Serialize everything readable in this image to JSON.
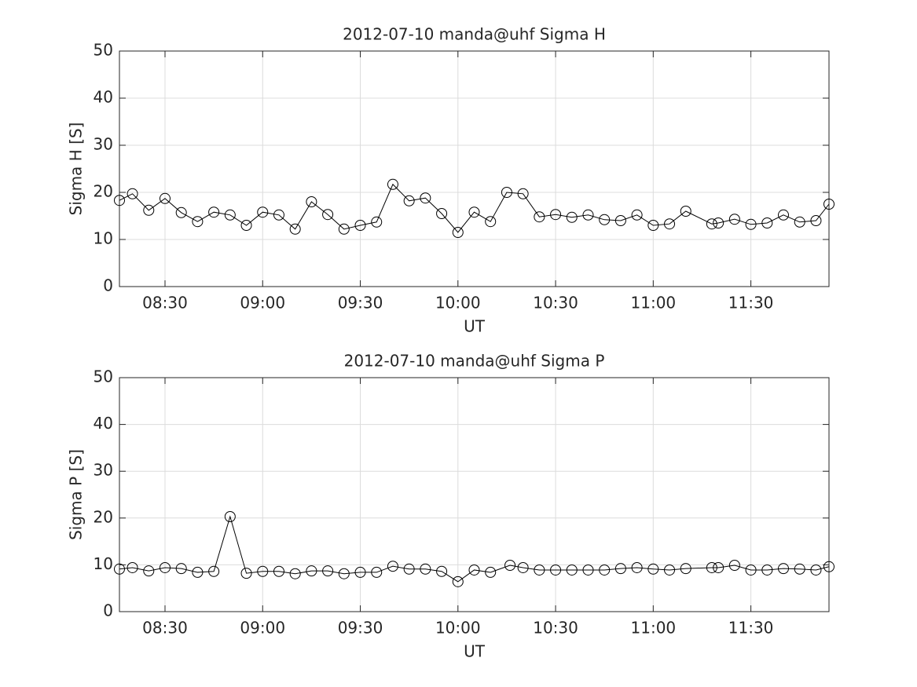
{
  "chart_data": [
    {
      "type": "line",
      "title": "2012-07-10  manda@uhf Sigma H",
      "xlabel": "UT",
      "ylabel": "Sigma H [S]",
      "x": [
        496,
        500,
        505,
        510,
        515,
        520,
        525,
        530,
        535,
        540,
        545,
        550,
        555,
        560,
        565,
        570,
        575,
        580,
        585,
        590,
        595,
        600,
        605,
        610,
        615,
        620,
        625,
        630,
        635,
        640,
        645,
        650,
        655,
        660,
        665,
        670,
        678,
        680,
        685,
        690,
        695,
        700,
        705,
        710,
        714
      ],
      "values": [
        18.3,
        19.7,
        16.2,
        18.7,
        15.7,
        13.8,
        15.8,
        15.2,
        13.0,
        15.8,
        15.2,
        12.2,
        18.0,
        15.3,
        12.2,
        13.0,
        13.7,
        21.7,
        18.2,
        18.8,
        15.5,
        11.5,
        15.8,
        13.8,
        20.0,
        19.7,
        14.8,
        15.3,
        14.7,
        15.2,
        14.2,
        14.0,
        15.2,
        13.0,
        13.3,
        16.0,
        13.3,
        13.5,
        14.3,
        13.2,
        13.5,
        15.2,
        13.7,
        14.0,
        17.5
      ],
      "color": "#000000",
      "xlim": [
        496,
        714
      ],
      "xticks": [
        {
          "value": 510,
          "label": "08:30"
        },
        {
          "value": 540,
          "label": "09:00"
        },
        {
          "value": 570,
          "label": "09:30"
        },
        {
          "value": 600,
          "label": "10:00"
        },
        {
          "value": 630,
          "label": "10:30"
        },
        {
          "value": 660,
          "label": "11:00"
        },
        {
          "value": 690,
          "label": "11:30"
        }
      ],
      "ylim": [
        0,
        50
      ],
      "yticks": [
        0,
        10,
        20,
        30,
        40,
        50
      ],
      "grid": true
    },
    {
      "type": "line",
      "title": "2012-07-10  manda@uhf Sigma P",
      "xlabel": "UT",
      "ylabel": "Sigma P [S]",
      "x": [
        496,
        500,
        505,
        510,
        515,
        520,
        525,
        530,
        535,
        540,
        545,
        550,
        555,
        560,
        565,
        570,
        575,
        580,
        585,
        590,
        595,
        600,
        605,
        610,
        616,
        620,
        625,
        630,
        635,
        640,
        645,
        650,
        655,
        660,
        665,
        670,
        678,
        680,
        685,
        690,
        695,
        700,
        705,
        710,
        714
      ],
      "values": [
        9.1,
        9.4,
        8.7,
        9.4,
        9.2,
        8.4,
        8.6,
        20.3,
        8.2,
        8.6,
        8.6,
        8.1,
        8.7,
        8.7,
        8.1,
        8.4,
        8.4,
        9.7,
        9.1,
        9.1,
        8.6,
        6.4,
        8.9,
        8.4,
        9.9,
        9.4,
        8.9,
        8.9,
        8.9,
        8.9,
        8.9,
        9.2,
        9.4,
        9.1,
        8.9,
        9.2,
        9.4,
        9.4,
        9.9,
        8.9,
        8.9,
        9.2,
        9.1,
        8.9,
        9.6
      ],
      "color": "#000000",
      "xlim": [
        496,
        714
      ],
      "xticks": [
        {
          "value": 510,
          "label": "08:30"
        },
        {
          "value": 540,
          "label": "09:00"
        },
        {
          "value": 570,
          "label": "09:30"
        },
        {
          "value": 600,
          "label": "10:00"
        },
        {
          "value": 630,
          "label": "10:30"
        },
        {
          "value": 660,
          "label": "11:00"
        },
        {
          "value": 690,
          "label": "11:30"
        }
      ],
      "ylim": [
        0,
        50
      ],
      "yticks": [
        0,
        10,
        20,
        30,
        40,
        50
      ],
      "grid": true
    }
  ]
}
